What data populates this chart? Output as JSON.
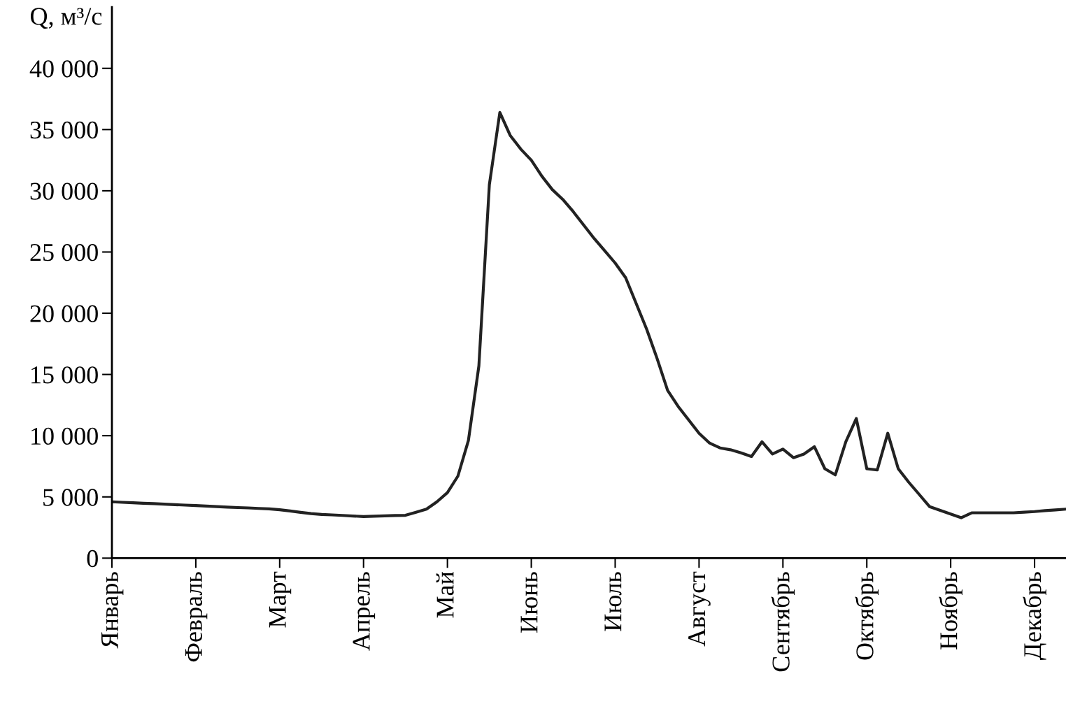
{
  "chart_data": {
    "type": "line",
    "ylabel": "Q, м³/с",
    "color": "#222222",
    "categories": [
      "Январь",
      null,
      null,
      null,
      null,
      null,
      null,
      null,
      "Февраль",
      null,
      null,
      null,
      null,
      null,
      null,
      null,
      "Март",
      null,
      null,
      null,
      null,
      null,
      null,
      null,
      "Апрель",
      null,
      null,
      null,
      null,
      null,
      null,
      null,
      "Май",
      null,
      null,
      null,
      null,
      null,
      null,
      null,
      "Июнь",
      null,
      null,
      null,
      null,
      null,
      null,
      null,
      "Июль",
      null,
      null,
      null,
      null,
      null,
      null,
      null,
      "Август",
      null,
      null,
      null,
      null,
      null,
      null,
      null,
      "Сентябрь",
      null,
      null,
      null,
      null,
      null,
      null,
      null,
      "Октябрь",
      null,
      null,
      null,
      null,
      null,
      null,
      null,
      "Ноябрь",
      null,
      null,
      null,
      null,
      null,
      null,
      null,
      "Декабрь",
      null,
      null,
      null
    ],
    "values": [
      4600,
      4560,
      4520,
      4480,
      4450,
      4410,
      4370,
      4330,
      4290,
      4250,
      4210,
      4170,
      4130,
      4100,
      4060,
      4020,
      3950,
      3850,
      3740,
      3640,
      3570,
      3530,
      3490,
      3440,
      3400,
      3420,
      3450,
      3480,
      3500,
      3750,
      4000,
      4600,
      5350,
      6700,
      9600,
      15700,
      30500,
      36400,
      34500,
      33400,
      32500,
      31200,
      30100,
      29300,
      28300,
      27200,
      26100,
      25100,
      24100,
      22900,
      20800,
      18700,
      16300,
      13700,
      12400,
      11300,
      10200,
      9400,
      9000,
      8850,
      8600,
      8300,
      9500,
      8500,
      8900,
      8200,
      8500,
      9100,
      7300,
      6800,
      9500,
      11400,
      7300,
      7200,
      10200,
      7300,
      6200,
      5200,
      4200,
      3900,
      3600,
      3300,
      3700,
      3700,
      3700,
      3700,
      3700,
      3750,
      3800,
      3880,
      3940,
      4000
    ],
    "ylim": [
      0,
      45000
    ],
    "yticks": [
      0,
      {
        "value": 5000,
        "label": "5 000"
      },
      {
        "value": 10000,
        "label": "10 000"
      },
      {
        "value": 15000,
        "label": "15 000"
      },
      {
        "value": 20000,
        "label": "20 000"
      },
      {
        "value": 25000,
        "label": "25 000"
      },
      {
        "value": 30000,
        "label": "30 000"
      },
      {
        "value": 35000,
        "label": "35 000"
      },
      {
        "value": 40000,
        "label": "40 000"
      }
    ],
    "marker": "none",
    "line_style": "solid"
  }
}
